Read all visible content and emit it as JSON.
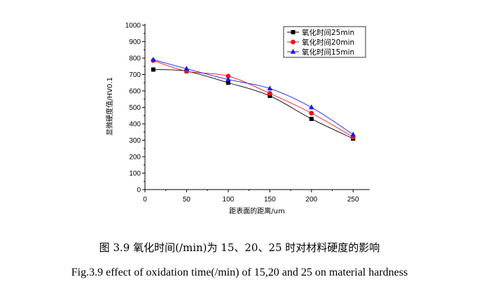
{
  "chart_data": {
    "type": "line",
    "xlabel": "距表面的距离/um",
    "ylabel": "显微硬度值/HV0.1",
    "xlim": [
      0,
      270
    ],
    "ylim": [
      0,
      1000
    ],
    "xticks": [
      0,
      50,
      100,
      150,
      200,
      250
    ],
    "yticks": [
      0,
      100,
      200,
      300,
      400,
      500,
      600,
      700,
      800,
      900,
      1000
    ],
    "legend_position": "top-right",
    "x": [
      10,
      50,
      100,
      150,
      200,
      250
    ],
    "series": [
      {
        "name": "氧化时间25min",
        "color": "#000000",
        "marker": "square",
        "values": [
          730,
          720,
          650,
          570,
          430,
          310
        ]
      },
      {
        "name": "氧化时间20min",
        "color": "#e8141c",
        "marker": "circle",
        "values": [
          785,
          720,
          690,
          585,
          465,
          320
        ]
      },
      {
        "name": "氧化时间15min",
        "color": "#1a1ae6",
        "marker": "triangle",
        "values": [
          790,
          735,
          670,
          615,
          500,
          335
        ]
      }
    ]
  },
  "caption": {
    "chinese": "图 3.9 氧化时间(/min)为 15、20、25 时对材料硬度的影响",
    "english": "Fig.3.9 effect of oxidation time(/min) of 15,20 and 25 on material hardness"
  }
}
